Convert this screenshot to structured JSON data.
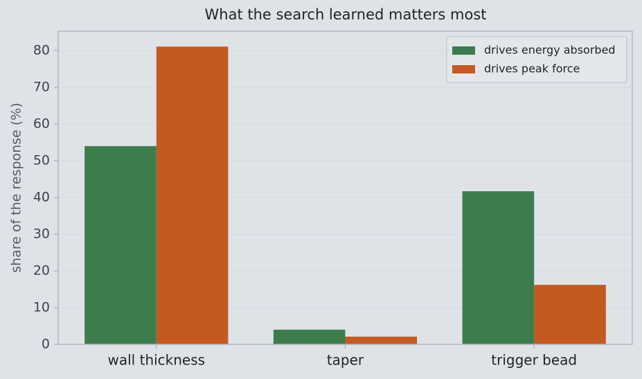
{
  "chart_data": {
    "type": "grouped-bar",
    "title": "What the search learned matters most",
    "ylabel": "share of the response (%)",
    "categories": [
      "wall thickness",
      "taper",
      "trigger bead"
    ],
    "series": [
      {
        "name": "drives energy absorbed",
        "color": "#3d7d4d",
        "values": [
          54.0,
          4.0,
          41.7
        ]
      },
      {
        "name": "drives peak force",
        "color": "#c45a22",
        "values": [
          81.1,
          2.1,
          16.2
        ]
      }
    ],
    "ylim": [
      0,
      85.3
    ],
    "yticks": [
      0,
      10,
      20,
      30,
      40,
      50,
      60,
      70,
      80
    ],
    "grid": true,
    "legend": "upper-right"
  }
}
